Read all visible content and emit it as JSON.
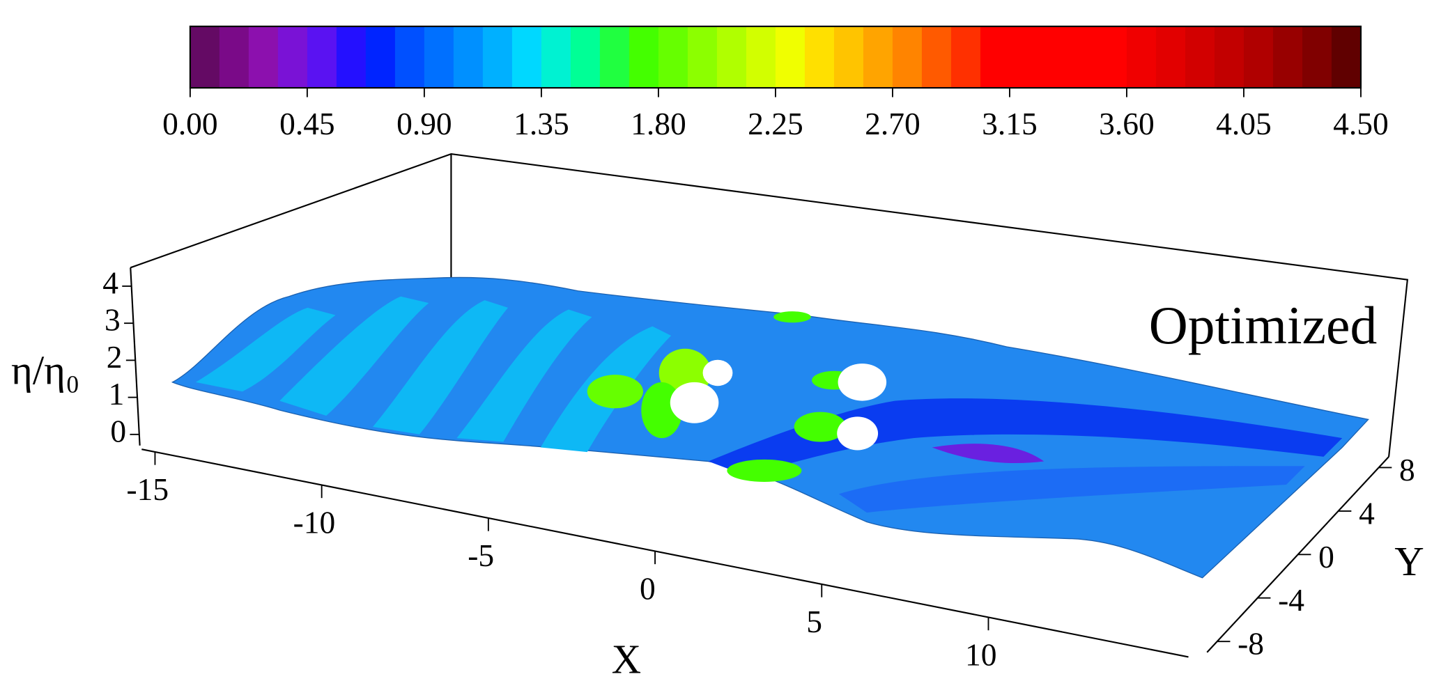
{
  "chart_data": {
    "type": "surface3d",
    "annotation": "Optimized",
    "xlabel": "X",
    "ylabel": "Y",
    "zlabel": "η/η₀",
    "colorbar": {
      "range": [
        0,
        4.5
      ],
      "colors": [
        "#640a64",
        "#7a0a88",
        "#8c10ae",
        "#7a12d6",
        "#5a12f2",
        "#2410ff",
        "#0024ff",
        "#0050ff",
        "#0070ff",
        "#0090ff",
        "#00b0ff",
        "#00d8ff",
        "#00f2d2",
        "#00ff96",
        "#20ff40",
        "#44ff00",
        "#66ff00",
        "#8cff00",
        "#b0ff00",
        "#d2ff00",
        "#f0ff00",
        "#ffe000",
        "#ffc400",
        "#ffa400",
        "#ff8400",
        "#ff5a00",
        "#ff3000",
        "#ff0000",
        "#ff0000",
        "#ff0000",
        "#ff0000",
        "#ff0000",
        "#f00000",
        "#e20000",
        "#d20000",
        "#c20000",
        "#b00000",
        "#980000",
        "#800000",
        "#600000"
      ],
      "ticks": [
        {
          "value": 0,
          "label": "0.00"
        },
        {
          "value": 0.45,
          "label": "0.45"
        },
        {
          "value": 0.9,
          "label": "0.90"
        },
        {
          "value": 1.35,
          "label": "1.35"
        },
        {
          "value": 1.8,
          "label": "1.80"
        },
        {
          "value": 2.25,
          "label": "2.25"
        },
        {
          "value": 2.7,
          "label": "2.70"
        },
        {
          "value": 3.15,
          "label": "3.15"
        },
        {
          "value": 3.6,
          "label": "3.60"
        },
        {
          "value": 4.05,
          "label": "4.05"
        },
        {
          "value": 4.5,
          "label": "4.50"
        }
      ]
    },
    "xlim": [
      -15.4,
      16
    ],
    "xticks": [
      -15,
      -10,
      -5,
      0,
      5,
      10
    ],
    "ylim": [
      -9,
      9
    ],
    "yticks": [
      -8,
      -4,
      0,
      4,
      8
    ],
    "zlim": [
      -0.3,
      4.5
    ],
    "zticks": [
      0,
      1,
      2,
      3,
      4
    ]
  }
}
